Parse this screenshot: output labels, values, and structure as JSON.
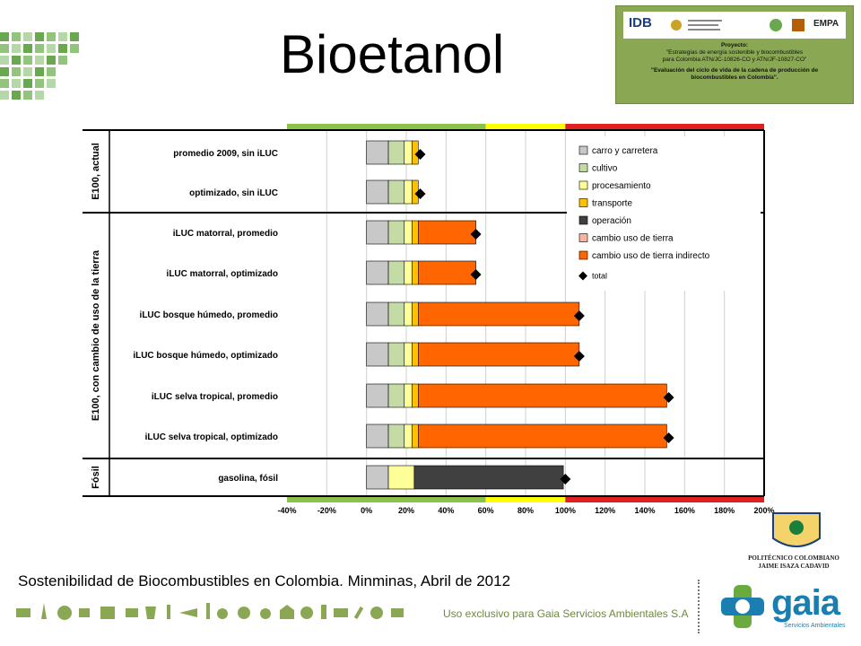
{
  "slide": {
    "title": "Bioetanol",
    "caption": "Sostenibilidad de Biocombustibles en Colombia. Minminas, Abril de 2012",
    "footer_text": "Uso exclusivo para Gaia Servicios Ambientales S.A"
  },
  "project_box": {
    "logo_text": "IDB",
    "logo_right": "EMPA",
    "heading": "Proyecto:",
    "line1": "\"Estrategias de energía sostenible y biocombustibles",
    "line2": "para Colombia ATN/JC-10826-CO y ATN/JF-10827-CO\"",
    "line3": "\"Evaluación del ciclo de vida de la cadena de producción de",
    "line4": "biocombustibles en Colombia\"."
  },
  "logos": {
    "poli_line1": "POLITÉCNICO COLOMBIANO",
    "poli_line2": "JAIME ISAZA CADAVID",
    "gaia_name": "gaia",
    "gaia_sub": "Servicios Ambientales"
  },
  "colors": {
    "carro": "#c8c8c8",
    "cultivo": "#c5dba5",
    "procesamiento": "#ffff99",
    "transporte": "#ffc000",
    "operacion": "#404040",
    "cambio_uso": "#f4b6a0",
    "cambio_indirecto": "#ff6600",
    "band_green": "#8bc34a",
    "band_yellow": "#ffff00",
    "band_red": "#e02020",
    "accent_green": "#8aa853"
  },
  "chart_data": {
    "type": "bar",
    "orientation": "horizontal",
    "stacked": true,
    "x_ticks": [
      "-40%",
      "-20%",
      "0%",
      "20%",
      "40%",
      "60%",
      "80%",
      "100%",
      "120%",
      "140%",
      "160%",
      "180%",
      "200%"
    ],
    "xlim": [
      -40,
      200
    ],
    "categories": [
      "promedio 2009, sin iLUC",
      "optimizado, sin iLUC",
      "iLUC matorral, promedio",
      "iLUC matorral, optimizado",
      "iLUC bosque húmedo, promedio",
      "iLUC bosque húmedo, optimizado",
      "iLUC selva tropical, promedio",
      "iLUC selva tropical, optimizado",
      "gasolina, fósil"
    ],
    "groups": [
      {
        "label": "E100, actual",
        "categories": [
          0,
          1
        ]
      },
      {
        "label": "E100, con cambio de uso de la tierra",
        "categories": [
          2,
          3,
          4,
          5,
          6,
          7
        ]
      },
      {
        "label": "Fósil",
        "categories": [
          8
        ]
      }
    ],
    "series": [
      {
        "name": "carro y carretera",
        "color_key": "carro",
        "values": [
          11,
          11,
          11,
          11,
          11,
          11,
          11,
          11,
          11
        ]
      },
      {
        "name": "cultivo",
        "color_key": "cultivo",
        "values": [
          8,
          8,
          8,
          8,
          8,
          8,
          8,
          8,
          0
        ]
      },
      {
        "name": "procesamiento",
        "color_key": "procesamiento",
        "values": [
          4,
          4,
          4,
          4,
          4,
          4,
          4,
          4,
          13
        ]
      },
      {
        "name": "transporte",
        "color_key": "transporte",
        "values": [
          3,
          3,
          3,
          3,
          3,
          3,
          3,
          3,
          0
        ]
      },
      {
        "name": "operación",
        "color_key": "operacion",
        "values": [
          0,
          0,
          0,
          0,
          0,
          0,
          0,
          0,
          75
        ]
      },
      {
        "name": "cambio uso de tierra",
        "color_key": "cambio_uso",
        "values": [
          0,
          0,
          0,
          0,
          0,
          0,
          0,
          0,
          0
        ]
      },
      {
        "name": "cambio uso de tierra indirecto",
        "color_key": "cambio_indirecto",
        "values": [
          0,
          0,
          29,
          29,
          81,
          81,
          125,
          125,
          0
        ]
      }
    ],
    "totals": {
      "name": "total",
      "values": [
        27,
        27,
        55,
        55,
        107,
        107,
        152,
        152,
        100
      ]
    },
    "bands": [
      {
        "from": -40,
        "to": 60,
        "color_key": "band_green"
      },
      {
        "from": 60,
        "to": 100,
        "color_key": "band_yellow"
      },
      {
        "from": 100,
        "to": 200,
        "color_key": "band_red"
      }
    ],
    "legend_position": "top-right",
    "grid": true
  }
}
